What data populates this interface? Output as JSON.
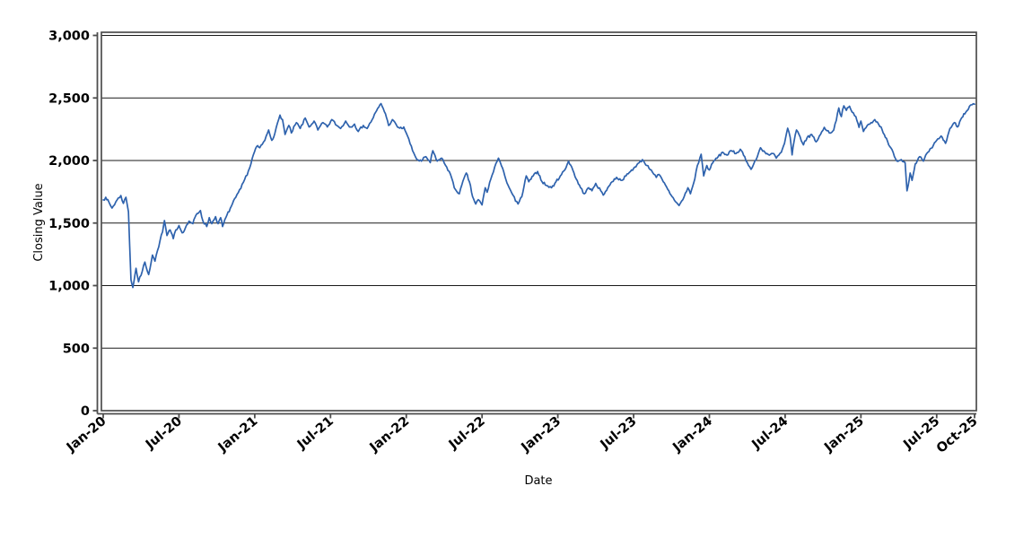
{
  "page": {
    "background": "#ffffff"
  },
  "chart_data": {
    "type": "line",
    "title": "",
    "xlabel": "Date",
    "ylabel": "Closing Value",
    "legend": "none",
    "grid": "horizontal-only",
    "x_unit": "months since Jan-2020",
    "xlim": [
      0,
      69
    ],
    "ylim": [
      0,
      3000
    ],
    "line_color": "#2E62AD",
    "grid_color": "#1a1a1a",
    "axis_color": "#4d4d4d",
    "frame_color": "#4d4d4d",
    "y_ticks": {
      "values": [
        0,
        500,
        1000,
        1500,
        2000,
        2500,
        3000
      ],
      "labels": [
        "0",
        "500",
        "1,000",
        "1,500",
        "2,000",
        "2,500",
        "3,000"
      ]
    },
    "x_ticks": {
      "values": [
        0,
        6,
        12,
        18,
        24,
        30,
        36,
        42,
        48,
        54,
        60,
        66,
        69
      ],
      "labels": [
        "Jan-20",
        "Jul-20",
        "Jan-21",
        "Jul-21",
        "Jan-22",
        "Jul-22",
        "Jan-23",
        "Jul-23",
        "Jan-24",
        "Jul-24",
        "Jan-25",
        "Jul-25",
        "Oct-25"
      ]
    },
    "texture_noise": 12,
    "series": [
      {
        "name": "Closing Value",
        "points": [
          [
            0,
            1685
          ],
          [
            0.2,
            1706
          ],
          [
            0.7,
            1620
          ],
          [
            1.1,
            1685
          ],
          [
            1.4,
            1720
          ],
          [
            1.6,
            1657
          ],
          [
            1.8,
            1706
          ],
          [
            2.0,
            1590
          ],
          [
            2.2,
            1046
          ],
          [
            2.35,
            985
          ],
          [
            2.6,
            1138
          ],
          [
            2.8,
            1030
          ],
          [
            3.1,
            1117
          ],
          [
            3.3,
            1188
          ],
          [
            3.6,
            1088
          ],
          [
            3.9,
            1244
          ],
          [
            4.1,
            1195
          ],
          [
            4.3,
            1280
          ],
          [
            4.5,
            1360
          ],
          [
            4.7,
            1430
          ],
          [
            4.85,
            1520
          ],
          [
            5.05,
            1400
          ],
          [
            5.3,
            1445
          ],
          [
            5.55,
            1375
          ],
          [
            5.75,
            1445
          ],
          [
            6.0,
            1480
          ],
          [
            6.25,
            1422
          ],
          [
            6.5,
            1459
          ],
          [
            6.8,
            1515
          ],
          [
            7.1,
            1495
          ],
          [
            7.35,
            1564
          ],
          [
            7.7,
            1600
          ],
          [
            7.9,
            1515
          ],
          [
            8.2,
            1472
          ],
          [
            8.4,
            1543
          ],
          [
            8.6,
            1495
          ],
          [
            8.9,
            1551
          ],
          [
            9.1,
            1495
          ],
          [
            9.3,
            1543
          ],
          [
            9.45,
            1472
          ],
          [
            9.8,
            1564
          ],
          [
            10.15,
            1635
          ],
          [
            10.5,
            1706
          ],
          [
            10.9,
            1777
          ],
          [
            11.2,
            1848
          ],
          [
            11.6,
            1941
          ],
          [
            11.9,
            2048
          ],
          [
            12.15,
            2112
          ],
          [
            12.4,
            2102
          ],
          [
            12.8,
            2161
          ],
          [
            13.1,
            2244
          ],
          [
            13.35,
            2161
          ],
          [
            13.6,
            2220
          ],
          [
            14.0,
            2363
          ],
          [
            14.2,
            2327
          ],
          [
            14.4,
            2208
          ],
          [
            14.7,
            2280
          ],
          [
            14.9,
            2220
          ],
          [
            15.3,
            2303
          ],
          [
            15.6,
            2256
          ],
          [
            16.0,
            2339
          ],
          [
            16.3,
            2268
          ],
          [
            16.7,
            2315
          ],
          [
            17.0,
            2244
          ],
          [
            17.4,
            2303
          ],
          [
            17.75,
            2268
          ],
          [
            18.1,
            2327
          ],
          [
            18.5,
            2280
          ],
          [
            18.8,
            2256
          ],
          [
            19.2,
            2315
          ],
          [
            19.5,
            2268
          ],
          [
            19.9,
            2291
          ],
          [
            20.2,
            2232
          ],
          [
            20.6,
            2280
          ],
          [
            20.9,
            2256
          ],
          [
            21.3,
            2327
          ],
          [
            21.65,
            2398
          ],
          [
            22.0,
            2455
          ],
          [
            22.35,
            2374
          ],
          [
            22.6,
            2280
          ],
          [
            22.9,
            2327
          ],
          [
            23.3,
            2268
          ],
          [
            23.65,
            2256
          ],
          [
            23.8,
            2268
          ],
          [
            24.1,
            2196
          ],
          [
            24.5,
            2078
          ],
          [
            24.85,
            2007
          ],
          [
            25.2,
            1995
          ],
          [
            25.55,
            2031
          ],
          [
            25.9,
            1983
          ],
          [
            26.1,
            2078
          ],
          [
            26.45,
            1995
          ],
          [
            26.8,
            2019
          ],
          [
            27.2,
            1948
          ],
          [
            27.5,
            1889
          ],
          [
            27.8,
            1782
          ],
          [
            28.2,
            1734
          ],
          [
            28.4,
            1805
          ],
          [
            28.75,
            1900
          ],
          [
            29.0,
            1830
          ],
          [
            29.25,
            1711
          ],
          [
            29.5,
            1652
          ],
          [
            29.7,
            1687
          ],
          [
            30.0,
            1645
          ],
          [
            30.25,
            1782
          ],
          [
            30.4,
            1746
          ],
          [
            30.7,
            1853
          ],
          [
            31.0,
            1948
          ],
          [
            31.3,
            2019
          ],
          [
            31.45,
            1983
          ],
          [
            31.8,
            1877
          ],
          [
            32.15,
            1782
          ],
          [
            32.45,
            1723
          ],
          [
            32.65,
            1675
          ],
          [
            32.85,
            1652
          ],
          [
            33.15,
            1711
          ],
          [
            33.5,
            1877
          ],
          [
            33.7,
            1830
          ],
          [
            34.05,
            1877
          ],
          [
            34.4,
            1912
          ],
          [
            34.75,
            1830
          ],
          [
            35.1,
            1800
          ],
          [
            35.5,
            1782
          ],
          [
            35.85,
            1830
          ],
          [
            36.2,
            1877
          ],
          [
            36.55,
            1924
          ],
          [
            36.85,
            1995
          ],
          [
            37.1,
            1948
          ],
          [
            37.45,
            1853
          ],
          [
            37.8,
            1782
          ],
          [
            38.1,
            1734
          ],
          [
            38.45,
            1782
          ],
          [
            38.7,
            1758
          ],
          [
            39.0,
            1817
          ],
          [
            39.4,
            1758
          ],
          [
            39.6,
            1723
          ],
          [
            39.95,
            1782
          ],
          [
            40.3,
            1830
          ],
          [
            40.65,
            1865
          ],
          [
            41.0,
            1841
          ],
          [
            41.4,
            1877
          ],
          [
            41.75,
            1912
          ],
          [
            42.1,
            1948
          ],
          [
            42.45,
            1983
          ],
          [
            42.7,
            2007
          ],
          [
            43.05,
            1960
          ],
          [
            43.4,
            1924
          ],
          [
            43.8,
            1865
          ],
          [
            44.0,
            1889
          ],
          [
            44.35,
            1830
          ],
          [
            44.7,
            1770
          ],
          [
            45.05,
            1711
          ],
          [
            45.4,
            1664
          ],
          [
            45.6,
            1640
          ],
          [
            45.9,
            1687
          ],
          [
            46.3,
            1782
          ],
          [
            46.5,
            1734
          ],
          [
            46.85,
            1853
          ],
          [
            47.05,
            1960
          ],
          [
            47.35,
            2050
          ],
          [
            47.55,
            1877
          ],
          [
            47.8,
            1960
          ],
          [
            48.0,
            1924
          ],
          [
            48.35,
            1995
          ],
          [
            48.7,
            2031
          ],
          [
            49.05,
            2066
          ],
          [
            49.4,
            2043
          ],
          [
            49.75,
            2078
          ],
          [
            50.1,
            2055
          ],
          [
            50.45,
            2090
          ],
          [
            50.8,
            2031
          ],
          [
            51.1,
            1960
          ],
          [
            51.3,
            1929
          ],
          [
            51.7,
            2007
          ],
          [
            52.05,
            2102
          ],
          [
            52.4,
            2066
          ],
          [
            52.75,
            2043
          ],
          [
            53.1,
            2055
          ],
          [
            53.3,
            2019
          ],
          [
            53.7,
            2066
          ],
          [
            53.95,
            2137
          ],
          [
            54.2,
            2258
          ],
          [
            54.4,
            2185
          ],
          [
            54.55,
            2045
          ],
          [
            54.7,
            2149
          ],
          [
            54.9,
            2244
          ],
          [
            55.1,
            2208
          ],
          [
            55.45,
            2125
          ],
          [
            55.75,
            2185
          ],
          [
            56.1,
            2208
          ],
          [
            56.45,
            2149
          ],
          [
            56.8,
            2208
          ],
          [
            57.1,
            2265
          ],
          [
            57.5,
            2220
          ],
          [
            57.85,
            2244
          ],
          [
            58.25,
            2420
          ],
          [
            58.45,
            2351
          ],
          [
            58.65,
            2437
          ],
          [
            58.85,
            2401
          ],
          [
            59.1,
            2434
          ],
          [
            59.3,
            2387
          ],
          [
            59.6,
            2351
          ],
          [
            59.85,
            2265
          ],
          [
            60.0,
            2315
          ],
          [
            60.2,
            2232
          ],
          [
            60.5,
            2280
          ],
          [
            60.8,
            2303
          ],
          [
            61.1,
            2327
          ],
          [
            61.4,
            2290
          ],
          [
            61.6,
            2268
          ],
          [
            61.85,
            2208
          ],
          [
            62.2,
            2125
          ],
          [
            62.55,
            2066
          ],
          [
            62.85,
            1995
          ],
          [
            63.2,
            2007
          ],
          [
            63.5,
            1983
          ],
          [
            63.65,
            1758
          ],
          [
            63.9,
            1900
          ],
          [
            64.05,
            1841
          ],
          [
            64.3,
            1972
          ],
          [
            64.65,
            2031
          ],
          [
            64.95,
            1995
          ],
          [
            65.3,
            2066
          ],
          [
            65.65,
            2102
          ],
          [
            66.0,
            2161
          ],
          [
            66.35,
            2196
          ],
          [
            66.7,
            2137
          ],
          [
            67.05,
            2256
          ],
          [
            67.4,
            2303
          ],
          [
            67.65,
            2268
          ],
          [
            67.9,
            2327
          ],
          [
            68.15,
            2374
          ],
          [
            68.4,
            2398
          ],
          [
            68.6,
            2434
          ],
          [
            68.8,
            2446
          ],
          [
            69.0,
            2450
          ]
        ]
      }
    ]
  }
}
